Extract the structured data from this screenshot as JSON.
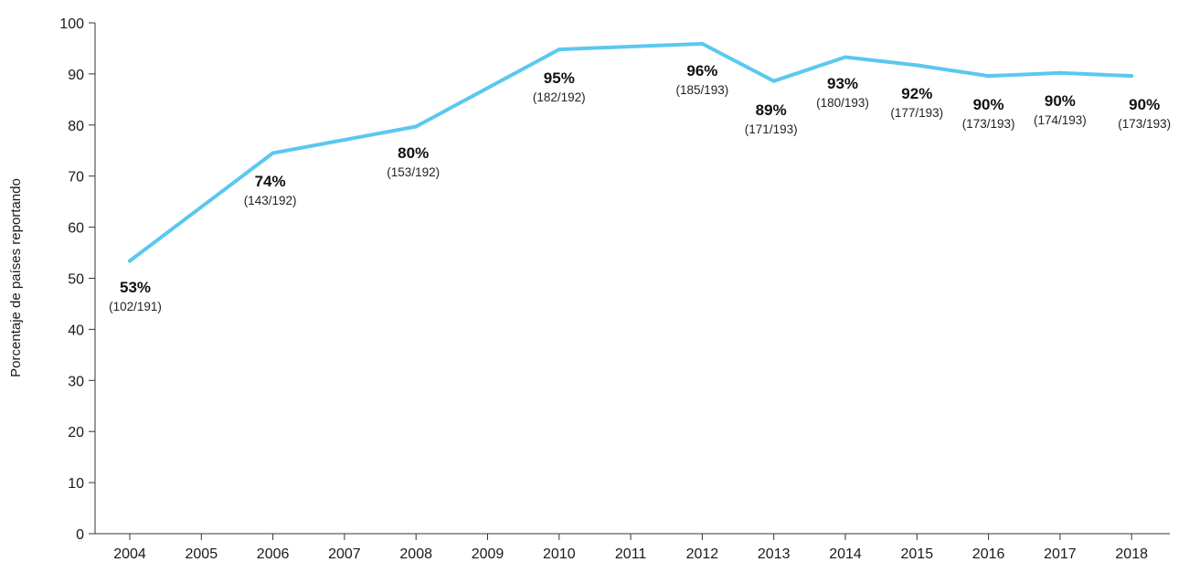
{
  "chart_data": {
    "type": "line",
    "title": "",
    "xlabel": "",
    "ylabel": "Porcentaje de países reportando",
    "ylim": [
      0,
      100
    ],
    "y_ticks": [
      0,
      10,
      20,
      30,
      40,
      50,
      60,
      70,
      80,
      90,
      100
    ],
    "x_ticks": [
      "2004",
      "2005",
      "2006",
      "2007",
      "2008",
      "2009",
      "2010",
      "2011",
      "2012",
      "2013",
      "2014",
      "2015",
      "2016",
      "2017",
      "2018"
    ],
    "grid": false,
    "line_color": "#5bc8ee",
    "series": [
      {
        "points": [
          {
            "x": "2004",
            "y": 53.4,
            "label": "53%",
            "detail": "(102/191)"
          },
          {
            "x": "2006",
            "y": 74.5,
            "label": "74%",
            "detail": "(143/192)"
          },
          {
            "x": "2008",
            "y": 79.7,
            "label": "80%",
            "detail": "(153/192)"
          },
          {
            "x": "2010",
            "y": 94.8,
            "label": "95%",
            "detail": "(182/192)"
          },
          {
            "x": "2012",
            "y": 95.9,
            "label": "96%",
            "detail": "(185/193)"
          },
          {
            "x": "2013",
            "y": 88.6,
            "label": "89%",
            "detail": "(171/193)"
          },
          {
            "x": "2014",
            "y": 93.3,
            "label": "93%",
            "detail": "(180/193)"
          },
          {
            "x": "2015",
            "y": 91.7,
            "label": "92%",
            "detail": "(177/193)"
          },
          {
            "x": "2016",
            "y": 89.6,
            "label": "90%",
            "detail": "(173/193)"
          },
          {
            "x": "2017",
            "y": 90.2,
            "label": "90%",
            "detail": "(174/193)"
          },
          {
            "x": "2018",
            "y": 89.6,
            "label": "90%",
            "detail": "(173/193)"
          }
        ]
      }
    ]
  }
}
